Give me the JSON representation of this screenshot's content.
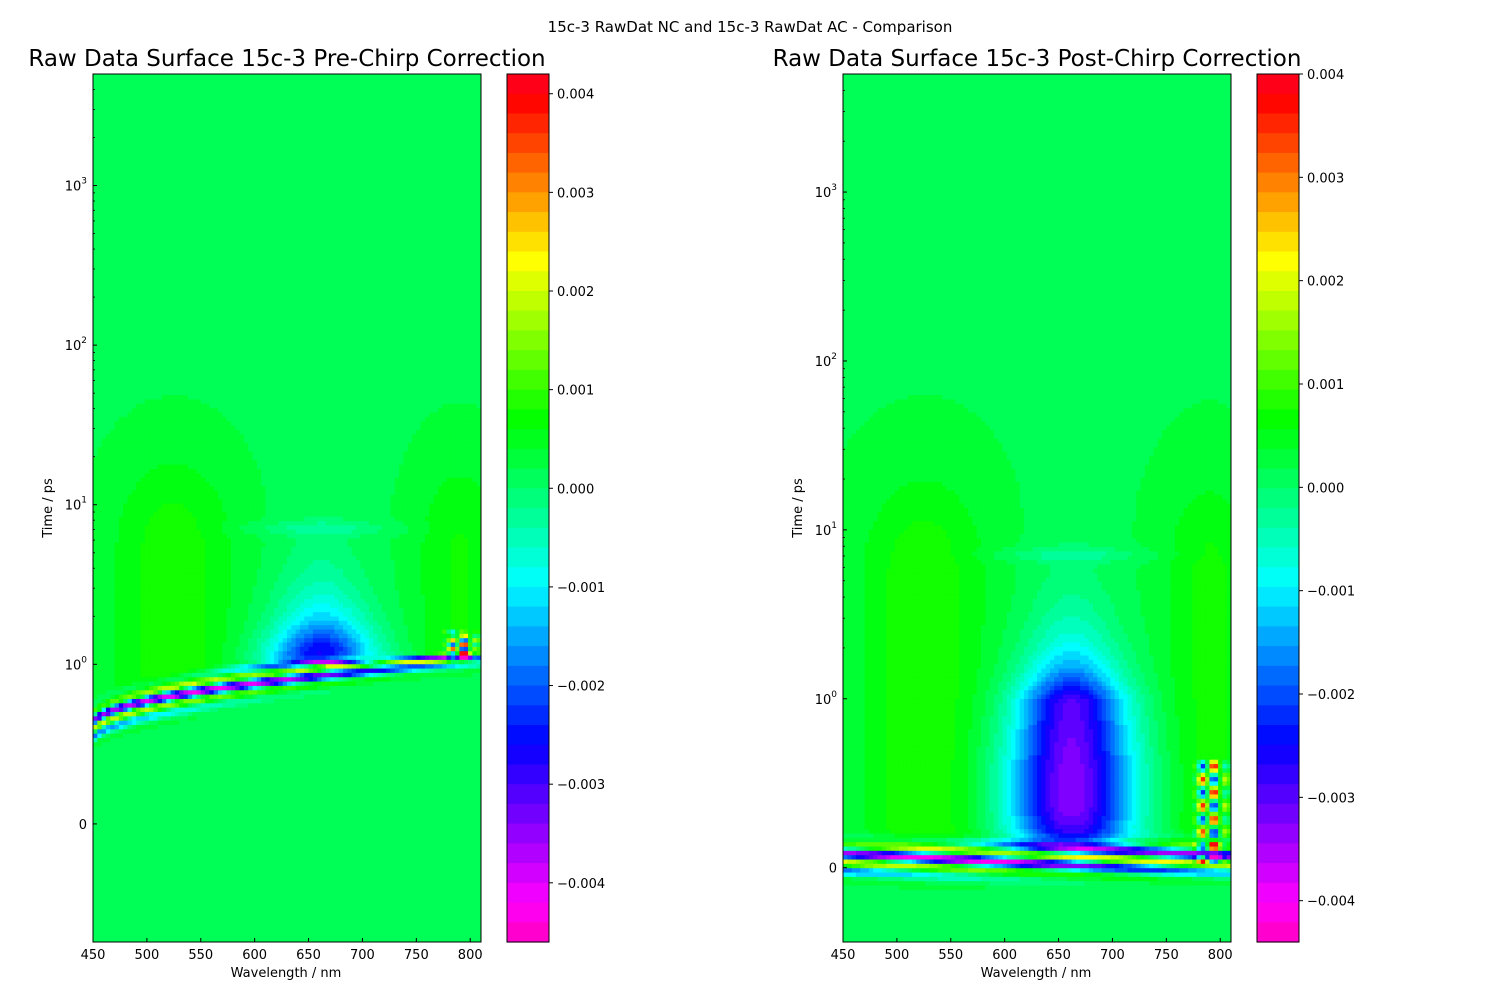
{
  "figure": {
    "suptitle": "15c-3 RawDat NC and 15c-3 RawDat AC - Comparison"
  },
  "chart_data": [
    {
      "type": "heatmap",
      "title": "Raw Data Surface 15c-3 Pre-Chirp Correction",
      "xlabel": "Wavelength / nm",
      "ylabel": "Time / ps",
      "x_range": [
        450,
        810
      ],
      "x_ticks": [
        {
          "value": 450,
          "label": "450"
        },
        {
          "value": 500,
          "label": "500"
        },
        {
          "value": 550,
          "label": "550"
        },
        {
          "value": 600,
          "label": "600"
        },
        {
          "value": 650,
          "label": "650"
        },
        {
          "value": 700,
          "label": "700"
        },
        {
          "value": 750,
          "label": "750"
        },
        {
          "value": 800,
          "label": "800"
        }
      ],
      "y_scale": "symlog",
      "y_range": [
        -0.74,
        5000
      ],
      "y_ticks": [
        {
          "value": 0,
          "label": "0"
        },
        {
          "value": 1,
          "base": "10",
          "exp": "0"
        },
        {
          "value": 10,
          "base": "10",
          "exp": "1"
        },
        {
          "value": 100,
          "base": "10",
          "exp": "2"
        },
        {
          "value": 1000,
          "base": "10",
          "exp": "3"
        }
      ],
      "colormap": "gist_rainbow",
      "color_range": [
        -0.0046,
        0.0042
      ],
      "colorbar_ticks": [
        {
          "value": 0.004,
          "label": "0.004"
        },
        {
          "value": 0.003,
          "label": "0.003"
        },
        {
          "value": 0.002,
          "label": "0.002"
        },
        {
          "value": 0.001,
          "label": "0.001"
        },
        {
          "value": 0.0,
          "label": "0.000"
        },
        {
          "value": -0.001,
          "label": "−0.001"
        },
        {
          "value": -0.002,
          "label": "−0.002"
        },
        {
          "value": -0.003,
          "label": "−0.003"
        },
        {
          "value": -0.004,
          "label": "−0.004"
        }
      ],
      "chirp_correction": false,
      "features": {
        "bleach_center_nm": 662,
        "bleach_peak_value": -0.0045,
        "bleach_time_extent_ps": [
          0.9,
          90
        ],
        "side_lobes_nm": [
          525,
          790
        ],
        "side_lobe_peak_value": 0.0007,
        "coherent_artifact_onset_ps_at_450nm": 0.6,
        "coherent_artifact_onset_ps_at_800nm": 1.1
      }
    },
    {
      "type": "heatmap",
      "title": "Raw Data Surface 15c-3 Post-Chirp Correction",
      "xlabel": "Wavelength / nm",
      "ylabel": "Time / ps",
      "x_range": [
        450,
        810
      ],
      "x_ticks": [
        {
          "value": 450,
          "label": "450"
        },
        {
          "value": 500,
          "label": "500"
        },
        {
          "value": 550,
          "label": "550"
        },
        {
          "value": 600,
          "label": "600"
        },
        {
          "value": 650,
          "label": "650"
        },
        {
          "value": 700,
          "label": "700"
        },
        {
          "value": 750,
          "label": "750"
        },
        {
          "value": 800,
          "label": "800"
        }
      ],
      "y_scale": "symlog",
      "y_range": [
        -0.44,
        5000
      ],
      "y_ticks": [
        {
          "value": 0,
          "label": "0"
        },
        {
          "value": 1,
          "base": "10",
          "exp": "0"
        },
        {
          "value": 10,
          "base": "10",
          "exp": "1"
        },
        {
          "value": 100,
          "base": "10",
          "exp": "2"
        },
        {
          "value": 1000,
          "base": "10",
          "exp": "3"
        }
      ],
      "colormap": "gist_rainbow",
      "color_range": [
        -0.0044,
        0.004
      ],
      "colorbar_ticks": [
        {
          "value": 0.004,
          "label": "0.004"
        },
        {
          "value": 0.003,
          "label": "0.003"
        },
        {
          "value": 0.002,
          "label": "0.002"
        },
        {
          "value": 0.001,
          "label": "0.001"
        },
        {
          "value": 0.0,
          "label": "0.000"
        },
        {
          "value": -0.001,
          "label": "−0.001"
        },
        {
          "value": -0.002,
          "label": "−0.002"
        },
        {
          "value": -0.003,
          "label": "−0.003"
        },
        {
          "value": -0.004,
          "label": "−0.004"
        }
      ],
      "chirp_correction": true,
      "features": {
        "bleach_center_nm": 662,
        "bleach_peak_value": -0.0042,
        "bleach_time_extent_ps": [
          0.1,
          90
        ],
        "side_lobes_nm": [
          525,
          790
        ],
        "side_lobe_peak_value": 0.0007,
        "coherent_artifact_onset_ps_at_450nm": 0.05,
        "coherent_artifact_onset_ps_at_800nm": 0.05
      }
    }
  ]
}
